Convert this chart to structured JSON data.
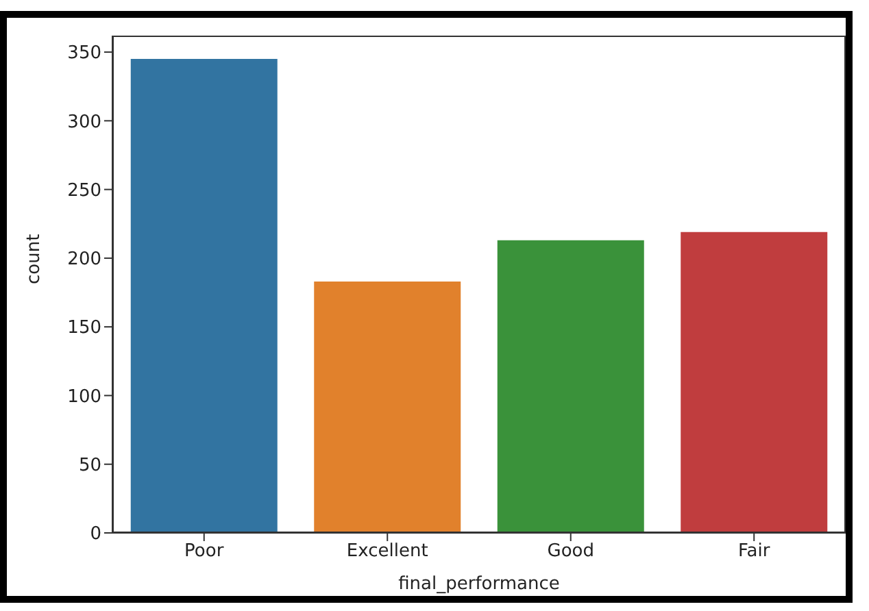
{
  "chart_data": {
    "type": "bar",
    "xlabel": "final_performance",
    "ylabel": "count",
    "categories": [
      "Poor",
      "Excellent",
      "Good",
      "Fair"
    ],
    "values": [
      345,
      183,
      213,
      219
    ],
    "colors": [
      "#3274a1",
      "#e1812c",
      "#3a923a",
      "#c03d3e"
    ],
    "ylim": [
      0,
      362
    ],
    "yticks": [
      0,
      50,
      100,
      150,
      200,
      250,
      300,
      350
    ],
    "grid": false
  }
}
